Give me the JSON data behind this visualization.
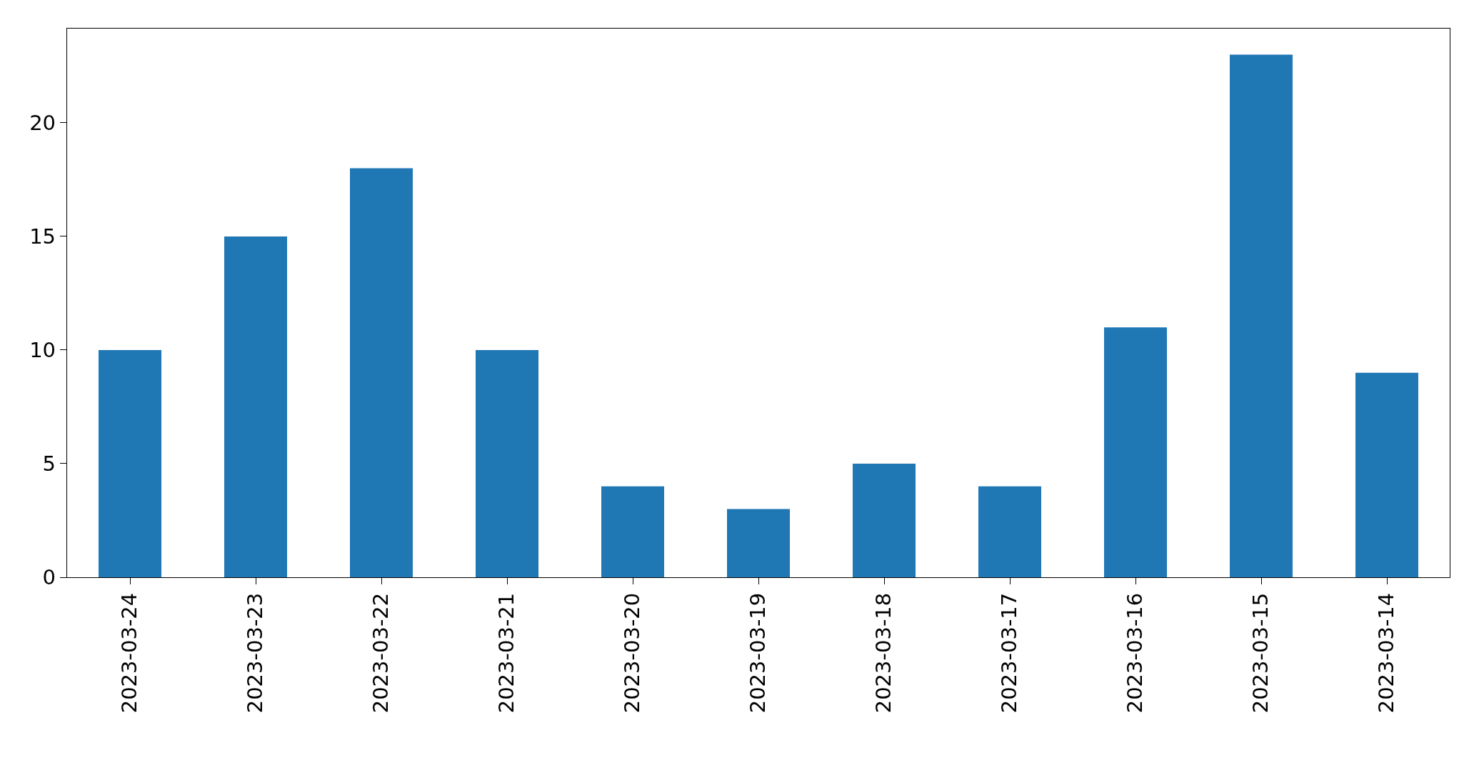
{
  "chart_data": {
    "type": "bar",
    "categories": [
      "2023-03-24",
      "2023-03-23",
      "2023-03-22",
      "2023-03-21",
      "2023-03-20",
      "2023-03-19",
      "2023-03-18",
      "2023-03-17",
      "2023-03-16",
      "2023-03-15",
      "2023-03-14"
    ],
    "values": [
      10,
      15,
      18,
      10,
      4,
      3,
      5,
      4,
      11,
      23,
      9
    ],
    "color": "#1f77b4",
    "ylim": [
      0,
      24.15
    ],
    "yticks": [
      0,
      5,
      10,
      15,
      20
    ],
    "grid": false,
    "legend": false
  }
}
